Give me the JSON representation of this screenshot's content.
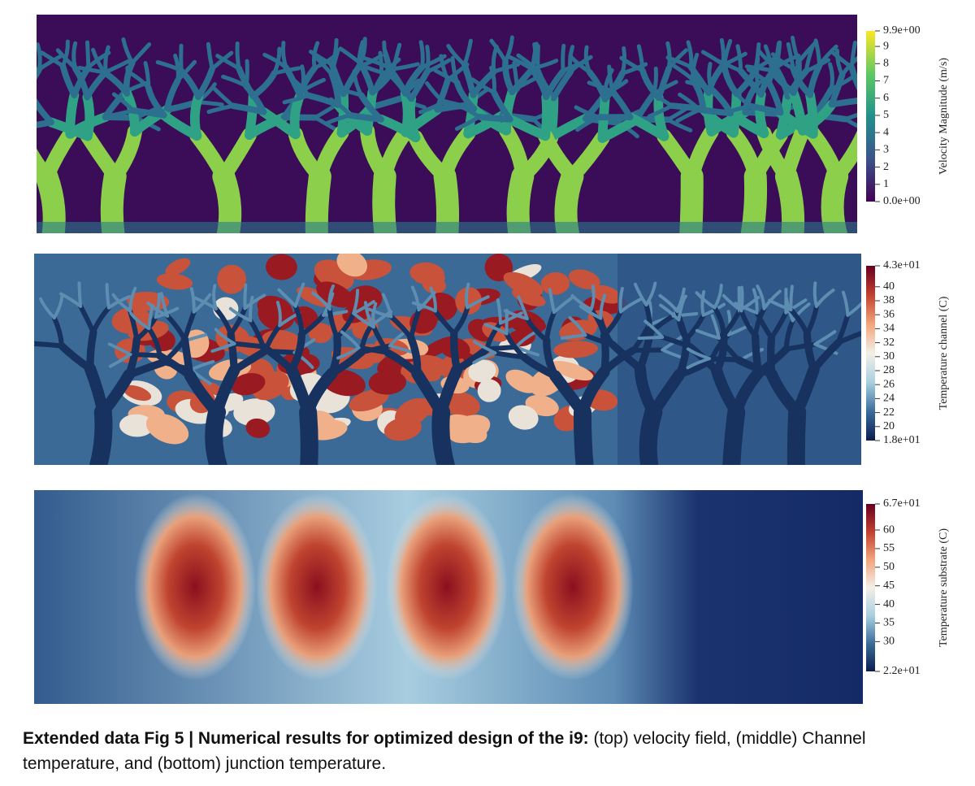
{
  "panels": [
    {
      "colorbar": {
        "label": "Velocity Magnitude (m/s)",
        "lim": [
          0,
          9.9
        ],
        "ticks": [
          {
            "value": 9.9,
            "label": "9.9e+00"
          },
          9,
          8,
          7,
          6,
          5,
          4,
          3,
          2,
          1,
          {
            "value": 0,
            "label": "0.0e+00"
          }
        ],
        "colors": [
          "#440154",
          "#3b528b",
          "#21918c",
          "#5ec962",
          "#fde725"
        ]
      }
    },
    {
      "colorbar": {
        "label": "Temperature channel (C)",
        "lim": [
          18,
          43
        ],
        "ticks": [
          {
            "value": 43,
            "label": "4.3e+01"
          },
          40,
          38,
          36,
          34,
          32,
          30,
          28,
          26,
          24,
          22,
          20,
          {
            "value": 18,
            "label": "1.8e+01"
          }
        ],
        "colors": [
          "#0b1d4f",
          "#3a6d9a",
          "#a9d0e0",
          "#f4efe8",
          "#f2a57a",
          "#c2402f",
          "#67001f"
        ]
      }
    },
    {
      "colorbar": {
        "label": "Temperature substrate (C)",
        "lim": [
          22,
          67
        ],
        "ticks": [
          {
            "value": 67,
            "label": "6.7e+01"
          },
          60,
          55,
          50,
          45,
          40,
          35,
          30,
          {
            "value": 22,
            "label": "2.2e+01"
          }
        ],
        "colors": [
          "#0b1d4f",
          "#3a6d9a",
          "#a9d0e0",
          "#f4efe8",
          "#f2a57a",
          "#c2402f",
          "#67001f"
        ]
      }
    }
  ],
  "caption": {
    "bold": "Extended data Fig 5 | Numerical results for optimized design of the i9:",
    "text": " (top) velocity field, (middle) Channel temperature, and (bottom) junction temperature."
  }
}
